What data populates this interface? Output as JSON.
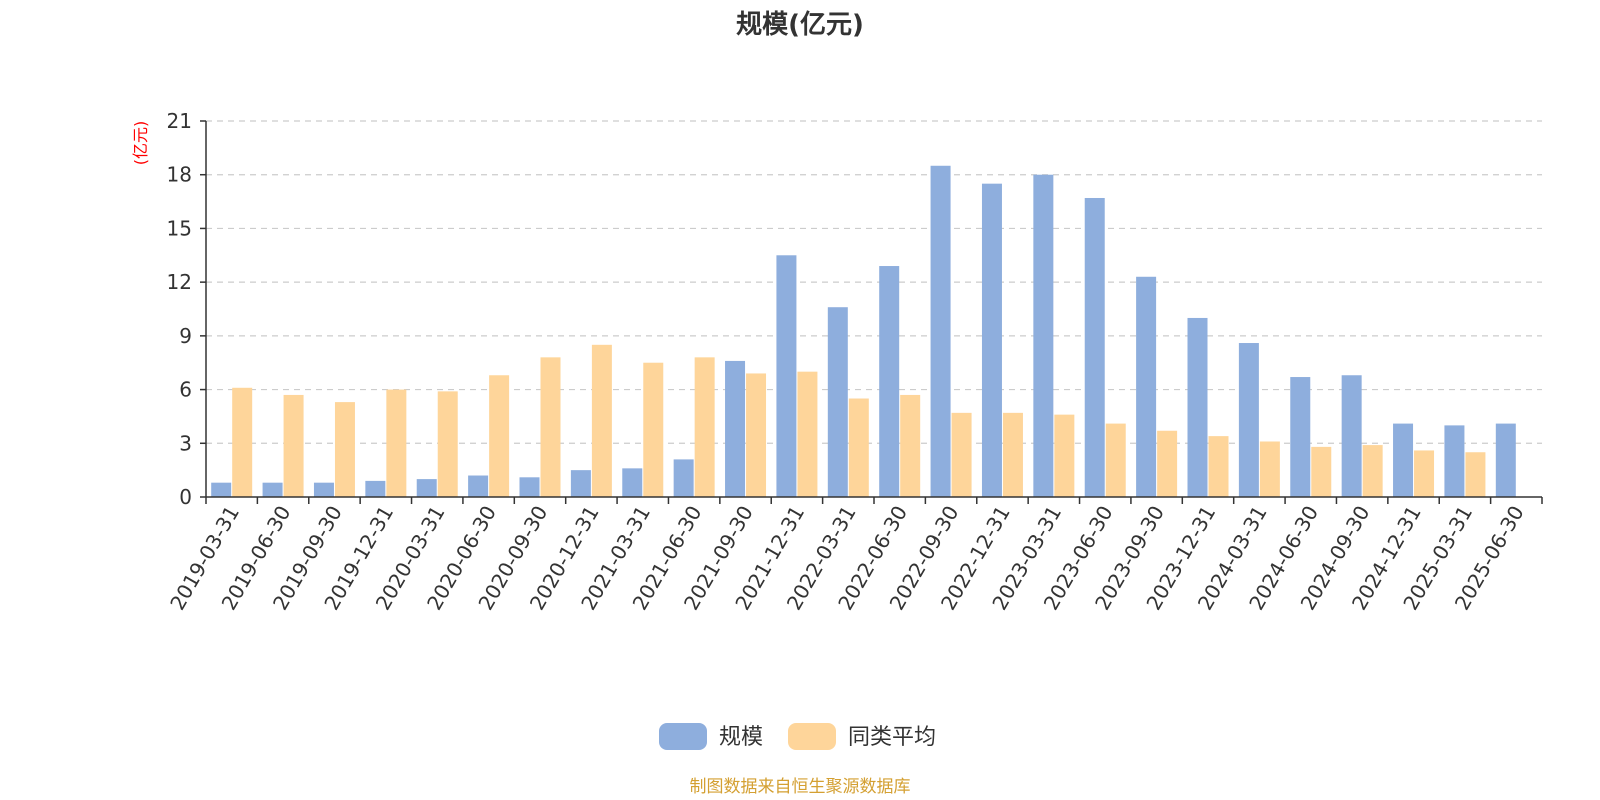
{
  "chart_data": {
    "type": "bar",
    "title": "规模(亿元)",
    "ylabel": "(亿元)",
    "ylim": [
      0,
      21
    ],
    "yticks": [
      0,
      3,
      6,
      9,
      12,
      15,
      18,
      21
    ],
    "grid": true,
    "legend_position": "bottom-center",
    "categories": [
      "2019-03-31",
      "2019-06-30",
      "2019-09-30",
      "2019-12-31",
      "2020-03-31",
      "2020-06-30",
      "2020-09-30",
      "2020-12-31",
      "2021-03-31",
      "2021-06-30",
      "2021-09-30",
      "2021-12-31",
      "2022-03-31",
      "2022-06-30",
      "2022-09-30",
      "2022-12-31",
      "2023-03-31",
      "2023-06-30",
      "2023-09-30",
      "2023-12-31",
      "2024-03-31",
      "2024-06-30",
      "2024-09-30",
      "2024-12-31",
      "2025-03-31",
      "2025-06-30"
    ],
    "series": [
      {
        "name": "规模",
        "color": "#8eaedd",
        "values": [
          0.8,
          0.8,
          0.8,
          0.9,
          1.0,
          1.2,
          1.1,
          1.5,
          1.6,
          2.1,
          7.6,
          13.5,
          10.6,
          12.9,
          18.5,
          17.5,
          18.0,
          16.7,
          12.3,
          10.0,
          8.6,
          6.7,
          6.8,
          4.1,
          4.0,
          4.1
        ]
      },
      {
        "name": "同类平均",
        "color": "#fed59a",
        "values": [
          6.1,
          5.7,
          5.3,
          6.0,
          5.9,
          6.8,
          7.8,
          8.5,
          7.5,
          7.8,
          6.9,
          7.0,
          5.5,
          5.7,
          4.7,
          4.7,
          4.6,
          4.1,
          3.7,
          3.4,
          3.1,
          2.8,
          2.9,
          2.6,
          2.5,
          null
        ]
      }
    ]
  },
  "source_text": "制图数据来自恒生聚源数据库",
  "colors": {
    "axis": "#333333",
    "grid": "#cccccc",
    "unit_label": "#ff0000",
    "source_text": "#d4a032",
    "title": "#333333"
  }
}
